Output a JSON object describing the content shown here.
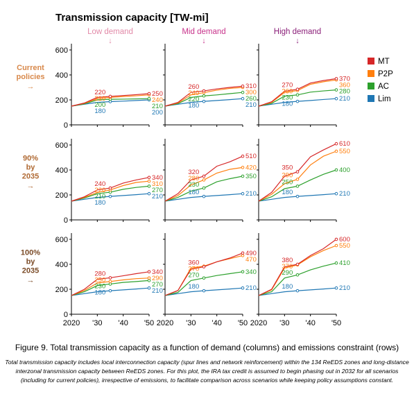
{
  "figure": {
    "title": "Transmission capacity [TW-mi]",
    "columns": [
      {
        "label": "Low demand",
        "arrow": "↓",
        "color": "#e28aa8"
      },
      {
        "label": "Mid demand",
        "arrow": "↓",
        "color": "#c8348c"
      },
      {
        "label": "High demand",
        "arrow": "↓",
        "color": "#8a1e78"
      }
    ],
    "rows": [
      {
        "label_lines": [
          "Current",
          "policies"
        ],
        "arrow": "→",
        "color": "#d8884a"
      },
      {
        "label_lines": [
          "90%",
          "by",
          "2035"
        ],
        "arrow": "→",
        "color": "#b06a34"
      },
      {
        "label_lines": [
          "100%",
          "by",
          "2035"
        ],
        "arrow": "→",
        "color": "#7a4a26"
      }
    ],
    "y_ticks": [
      "0",
      "200",
      "400",
      "600"
    ],
    "x_ticks": [
      "2020",
      "'30",
      "'40",
      "'50"
    ],
    "legend": [
      {
        "label": "MT",
        "color": "#d62728"
      },
      {
        "label": "P2P",
        "color": "#ff7f0e"
      },
      {
        "label": "AC",
        "color": "#2ca02c"
      },
      {
        "label": "Lim",
        "color": "#1f77b4"
      }
    ]
  },
  "chart_data": {
    "type": "line",
    "title": "Transmission capacity [TW-mi]",
    "xlim": [
      2020,
      2050
    ],
    "ylim": [
      0,
      650
    ],
    "x": [
      2020,
      2025,
      2030,
      2035,
      2040,
      2045,
      2050
    ],
    "grid": false,
    "legend_position": "right",
    "panels": [
      {
        "row": "Current policies",
        "column": "Low demand",
        "series": [
          {
            "name": "MT",
            "values": [
              150,
              175,
              220,
              228,
              235,
              242,
              250
            ],
            "labels": [
              "220",
              "250"
            ]
          },
          {
            "name": "P2P",
            "values": [
              150,
              172,
              210,
              220,
              227,
              233,
              240
            ],
            "labels": [
              "210",
              "240"
            ]
          },
          {
            "name": "AC",
            "values": [
              150,
              168,
              200,
              205,
              206,
              208,
              210
            ],
            "labels": [
              "200",
              "210"
            ]
          },
          {
            "name": "Lim",
            "values": [
              150,
              165,
              180,
              186,
              190,
              195,
              200
            ],
            "labels": [
              "180",
              "200"
            ]
          }
        ]
      },
      {
        "row": "Current policies",
        "column": "Mid demand",
        "series": [
          {
            "name": "MT",
            "values": [
              150,
              180,
              260,
              272,
              288,
              300,
              310
            ],
            "labels": [
              "260",
              "310"
            ]
          },
          {
            "name": "P2P",
            "values": [
              150,
              175,
              240,
              258,
              278,
              292,
              300
            ],
            "labels": [
              "240",
              "300"
            ]
          },
          {
            "name": "AC",
            "values": [
              150,
              170,
              220,
              232,
              240,
              250,
              260
            ],
            "labels": [
              "220",
              "260"
            ]
          },
          {
            "name": "Lim",
            "values": [
              150,
              165,
              180,
              188,
              195,
              202,
              210
            ],
            "labels": [
              "180",
              "210"
            ]
          }
        ]
      },
      {
        "row": "Current policies",
        "column": "High demand",
        "series": [
          {
            "name": "MT",
            "values": [
              150,
              185,
              270,
              285,
              335,
              355,
              370
            ],
            "labels": [
              "270",
              "370"
            ]
          },
          {
            "name": "P2P",
            "values": [
              150,
              180,
              260,
              275,
              325,
              345,
              360
            ],
            "labels": [
              "260",
              "360"
            ]
          },
          {
            "name": "AC",
            "values": [
              150,
              172,
              230,
              240,
              262,
              272,
              280
            ],
            "labels": [
              "230",
              "280"
            ]
          },
          {
            "name": "Lim",
            "values": [
              150,
              165,
              180,
              188,
              195,
              203,
              210
            ],
            "labels": [
              "180",
              "210"
            ]
          }
        ]
      },
      {
        "row": "90% by 2035",
        "column": "Low demand",
        "series": [
          {
            "name": "MT",
            "values": [
              150,
              185,
              240,
              255,
              295,
              320,
              340
            ],
            "labels": [
              "240",
              "340"
            ]
          },
          {
            "name": "P2P",
            "values": [
              150,
              180,
              220,
              240,
              275,
              300,
              310
            ],
            "labels": [
              "220",
              "310"
            ]
          },
          {
            "name": "AC",
            "values": [
              150,
              175,
              210,
              222,
              245,
              260,
              270
            ],
            "labels": [
              "210",
              "270"
            ]
          },
          {
            "name": "Lim",
            "values": [
              150,
              165,
              180,
              188,
              195,
              202,
              210
            ],
            "labels": [
              "180",
              "210"
            ]
          }
        ]
      },
      {
        "row": "90% by 2035",
        "column": "Mid demand",
        "series": [
          {
            "name": "MT",
            "values": [
              150,
              210,
              320,
              350,
              430,
              465,
              510
            ],
            "labels": [
              "320",
              "510"
            ]
          },
          {
            "name": "P2P",
            "values": [
              150,
              195,
              280,
              320,
              375,
              405,
              420
            ],
            "labels": [
              "280",
              "420"
            ]
          },
          {
            "name": "AC",
            "values": [
              150,
              180,
              230,
              255,
              305,
              330,
              350
            ],
            "labels": [
              "230",
              "350"
            ]
          },
          {
            "name": "Lim",
            "values": [
              150,
              165,
              180,
              188,
              195,
              202,
              210
            ],
            "labels": [
              "180",
              "210"
            ]
          }
        ]
      },
      {
        "row": "90% by 2035",
        "column": "High demand",
        "series": [
          {
            "name": "MT",
            "values": [
              150,
              220,
              350,
              385,
              505,
              560,
              610
            ],
            "labels": [
              "350",
              "610"
            ]
          },
          {
            "name": "P2P",
            "values": [
              150,
              205,
              290,
              325,
              440,
              510,
              550
            ],
            "labels": [
              "290",
              "550"
            ]
          },
          {
            "name": "AC",
            "values": [
              150,
              185,
              250,
              270,
              320,
              365,
              400
            ],
            "labels": [
              "250",
              "400"
            ]
          },
          {
            "name": "Lim",
            "values": [
              150,
              165,
              180,
              188,
              195,
              202,
              210
            ],
            "labels": [
              "180",
              "210"
            ]
          }
        ]
      },
      {
        "row": "100% by 2035",
        "column": "Low demand",
        "series": [
          {
            "name": "MT",
            "values": [
              150,
              200,
              280,
              292,
              308,
              325,
              340
            ],
            "labels": [
              "280",
              "340"
            ]
          },
          {
            "name": "P2P",
            "values": [
              150,
              190,
              250,
              262,
              275,
              285,
              290
            ],
            "labels": [
              "250",
              "290"
            ]
          },
          {
            "name": "AC",
            "values": [
              150,
              180,
              230,
              242,
              255,
              262,
              270
            ],
            "labels": [
              "230",
              "270"
            ]
          },
          {
            "name": "Lim",
            "values": [
              150,
              165,
              180,
              188,
              195,
              202,
              210
            ],
            "labels": [
              "180",
              "210"
            ]
          }
        ]
      },
      {
        "row": "100% by 2035",
        "column": "Mid demand",
        "series": [
          {
            "name": "MT",
            "values": [
              150,
              190,
              360,
              380,
              420,
              450,
              490
            ],
            "labels": [
              "360",
              "490"
            ]
          },
          {
            "name": "P2P",
            "values": [
              150,
              190,
              370,
              385,
              420,
              445,
              470
            ],
            "labels": [
              "370",
              "470"
            ]
          },
          {
            "name": "AC",
            "values": [
              150,
              175,
              270,
              290,
              310,
              325,
              340
            ],
            "labels": [
              "270",
              "340"
            ]
          },
          {
            "name": "Lim",
            "values": [
              150,
              165,
              180,
              188,
              195,
              202,
              210
            ],
            "labels": [
              "180",
              "210"
            ]
          }
        ]
      },
      {
        "row": "100% by 2035",
        "column": "High demand",
        "series": [
          {
            "name": "MT",
            "values": [
              150,
              200,
              380,
              400,
              470,
              525,
              600
            ],
            "labels": [
              "380",
              "600"
            ]
          },
          {
            "name": "P2P",
            "values": [
              150,
              195,
              370,
              395,
              460,
              510,
              550
            ],
            "labels": [
              "370",
              "550"
            ]
          },
          {
            "name": "AC",
            "values": [
              150,
              180,
              290,
              315,
              355,
              385,
              410
            ],
            "labels": [
              "290",
              "410"
            ]
          },
          {
            "name": "Lim",
            "values": [
              150,
              165,
              180,
              188,
              195,
              202,
              210
            ],
            "labels": [
              "180",
              "210"
            ]
          }
        ]
      }
    ]
  },
  "caption": {
    "title": "Figure 9. Total transmission capacity as a function of demand (columns) and emissions constraint (rows)",
    "body": "Total transmission capacity includes local interconnection capacity (spur lines and network reinforcement) within the 134 ReEDS zones and long-distance interzonal transmission capacity between ReEDS zones. For this plot, the IRA tax credit is assumed to begin phasing out in 2032 for all scenarios (including for current policies), irrespective of emissions, to facilitate comparison across scenarios while keeping policy assumptions constant."
  }
}
